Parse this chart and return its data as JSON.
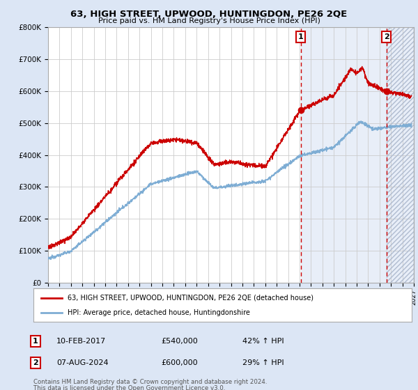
{
  "title": "63, HIGH STREET, UPWOOD, HUNTINGDON, PE26 2QE",
  "subtitle": "Price paid vs. HM Land Registry's House Price Index (HPI)",
  "ylim": [
    0,
    800000
  ],
  "xlim_start": 1995.0,
  "xlim_end": 2027.0,
  "sale1_date": 2017.11,
  "sale1_price": 540000,
  "sale1_label": "1",
  "sale2_date": 2024.6,
  "sale2_price": 600000,
  "sale2_label": "2",
  "hpi_color": "#7eadd4",
  "price_color": "#cc0000",
  "legend_line1": "63, HIGH STREET, UPWOOD, HUNTINGDON, PE26 2QE (detached house)",
  "legend_line2": "HPI: Average price, detached house, Huntingdonshire",
  "footnote1": "Contains HM Land Registry data © Crown copyright and database right 2024.",
  "footnote2": "This data is licensed under the Open Government Licence v3.0.",
  "background_color": "#dce6f5",
  "plot_bg_color": "#ffffff",
  "hatch_bg_color": "#dce6f5",
  "grid_color": "#cccccc"
}
